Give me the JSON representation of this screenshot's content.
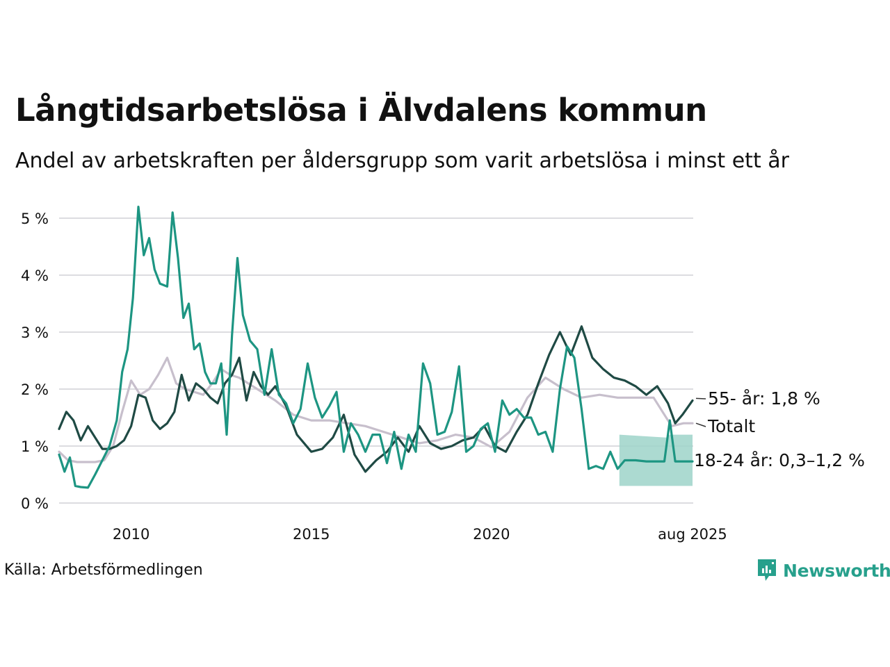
{
  "title": "Långtidsarbetslösa i Älvdalens kommun",
  "subtitle": "Andel av arbetskraften per åldersgrupp som varit arbetslösa i minst ett år",
  "source": "Källa: Arbetsförmedlingen",
  "brand": {
    "name": "Newsworthy",
    "icon": "newsworthy-logo-icon",
    "color": "#27a08c"
  },
  "chart_data": {
    "type": "line",
    "x_range": [
      2008.0,
      2025.6
    ],
    "ylim": [
      0,
      5
    ],
    "yticks": [
      0,
      1,
      2,
      3,
      4,
      5
    ],
    "ytick_labels": [
      "0 %",
      "1 %",
      "2 %",
      "3 %",
      "4 %",
      "5 %"
    ],
    "xticks": [
      2010,
      2015,
      2020,
      2025.58
    ],
    "xtick_labels": [
      "2010",
      "2015",
      "2020",
      "aug 2025"
    ],
    "grid": "horizontal",
    "series": [
      {
        "key": "totalt",
        "label": "Totalt",
        "color": "#c7bfcc",
        "x": [
          2008.0,
          2008.25,
          2008.5,
          2008.75,
          2009.0,
          2009.25,
          2009.5,
          2009.75,
          2010.0,
          2010.25,
          2010.5,
          2010.75,
          2011.0,
          2011.25,
          2011.5,
          2011.75,
          2012.0,
          2012.25,
          2012.5,
          2012.75,
          2013.0,
          2013.5,
          2014.0,
          2014.5,
          2015.0,
          2015.5,
          2016.0,
          2016.5,
          2017.0,
          2017.5,
          2018.0,
          2018.5,
          2019.0,
          2019.5,
          2020.0,
          2020.5,
          2021.0,
          2021.5,
          2022.0,
          2022.5,
          2023.0,
          2023.5,
          2024.0,
          2024.5,
          2025.0,
          2025.33,
          2025.58
        ],
        "y": [
          0.9,
          0.75,
          0.72,
          0.72,
          0.72,
          0.75,
          1.0,
          1.6,
          2.15,
          1.9,
          2.0,
          2.25,
          2.55,
          2.1,
          2.0,
          1.95,
          1.9,
          2.1,
          2.35,
          2.25,
          2.2,
          2.0,
          1.8,
          1.55,
          1.45,
          1.45,
          1.4,
          1.35,
          1.25,
          1.15,
          1.05,
          1.1,
          1.2,
          1.15,
          0.98,
          1.25,
          1.85,
          2.2,
          2.0,
          1.85,
          1.9,
          1.85,
          1.85,
          1.85,
          1.35,
          1.4,
          1.4
        ]
      },
      {
        "key": "55plus",
        "label": "55- år: 1,8 %",
        "color": "#1f4a44",
        "x": [
          2008.0,
          2008.2,
          2008.4,
          2008.6,
          2008.8,
          2009.0,
          2009.2,
          2009.4,
          2009.6,
          2009.8,
          2010.0,
          2010.2,
          2010.4,
          2010.6,
          2010.8,
          2011.0,
          2011.2,
          2011.4,
          2011.6,
          2011.8,
          2012.0,
          2012.2,
          2012.4,
          2012.6,
          2012.8,
          2013.0,
          2013.2,
          2013.4,
          2013.6,
          2013.8,
          2014.0,
          2014.3,
          2014.6,
          2015.0,
          2015.3,
          2015.6,
          2015.9,
          2016.2,
          2016.5,
          2016.8,
          2017.1,
          2017.4,
          2017.7,
          2018.0,
          2018.3,
          2018.6,
          2018.9,
          2019.2,
          2019.5,
          2019.8,
          2020.1,
          2020.4,
          2020.7,
          2021.0,
          2021.3,
          2021.6,
          2021.9,
          2022.2,
          2022.5,
          2022.8,
          2023.1,
          2023.4,
          2023.7,
          2024.0,
          2024.3,
          2024.6,
          2024.9,
          2025.1,
          2025.3,
          2025.58
        ],
        "y": [
          1.3,
          1.6,
          1.45,
          1.1,
          1.35,
          1.15,
          0.95,
          0.95,
          1.0,
          1.1,
          1.35,
          1.9,
          1.85,
          1.45,
          1.3,
          1.4,
          1.6,
          2.25,
          1.8,
          2.1,
          2.0,
          1.85,
          1.75,
          2.1,
          2.25,
          2.55,
          1.8,
          2.3,
          2.05,
          1.9,
          2.05,
          1.7,
          1.2,
          0.9,
          0.95,
          1.15,
          1.55,
          0.85,
          0.55,
          0.75,
          0.9,
          1.15,
          0.9,
          1.35,
          1.05,
          0.95,
          1.0,
          1.1,
          1.15,
          1.35,
          1.0,
          0.9,
          1.25,
          1.55,
          2.1,
          2.6,
          3.0,
          2.6,
          3.1,
          2.55,
          2.35,
          2.2,
          2.15,
          2.05,
          1.9,
          2.05,
          1.75,
          1.4,
          1.55,
          1.8
        ]
      },
      {
        "key": "18_24",
        "label": "18-24 år: 0,3–1,2 %",
        "color": "#1d9582",
        "band_color": "#9ed3c9",
        "x": [
          2008.0,
          2008.15,
          2008.3,
          2008.45,
          2008.6,
          2008.8,
          2009.0,
          2009.2,
          2009.4,
          2009.6,
          2009.75,
          2009.9,
          2010.05,
          2010.2,
          2010.35,
          2010.5,
          2010.65,
          2010.8,
          2011.0,
          2011.15,
          2011.3,
          2011.45,
          2011.6,
          2011.75,
          2011.9,
          2012.05,
          2012.2,
          2012.35,
          2012.5,
          2012.65,
          2012.8,
          2012.95,
          2013.1,
          2013.3,
          2013.5,
          2013.7,
          2013.9,
          2014.1,
          2014.3,
          2014.5,
          2014.7,
          2014.9,
          2015.1,
          2015.3,
          2015.5,
          2015.7,
          2015.9,
          2016.1,
          2016.3,
          2016.5,
          2016.7,
          2016.9,
          2017.1,
          2017.3,
          2017.5,
          2017.7,
          2017.9,
          2018.1,
          2018.3,
          2018.5,
          2018.7,
          2018.9,
          2019.1,
          2019.3,
          2019.5,
          2019.7,
          2019.9,
          2020.1,
          2020.3,
          2020.5,
          2020.7,
          2020.9,
          2021.1,
          2021.3,
          2021.5,
          2021.7,
          2021.9,
          2022.1,
          2022.3,
          2022.5,
          2022.7,
          2022.9,
          2023.1,
          2023.3,
          2023.5,
          2023.7,
          2024.0,
          2024.3,
          2024.6,
          2024.8,
          2024.95,
          2025.1,
          2025.3,
          2025.58
        ],
        "y": [
          0.85,
          0.55,
          0.8,
          0.3,
          0.28,
          0.27,
          0.5,
          0.75,
          1.0,
          1.45,
          2.3,
          2.7,
          3.6,
          5.2,
          4.35,
          4.65,
          4.1,
          3.85,
          3.8,
          5.1,
          4.3,
          3.25,
          3.5,
          2.7,
          2.8,
          2.3,
          2.1,
          2.1,
          2.45,
          1.2,
          2.95,
          4.3,
          3.3,
          2.85,
          2.7,
          1.9,
          2.7,
          1.9,
          1.75,
          1.4,
          1.65,
          2.45,
          1.85,
          1.5,
          1.7,
          1.95,
          0.9,
          1.4,
          1.2,
          0.9,
          1.2,
          1.2,
          0.7,
          1.25,
          0.6,
          1.2,
          0.9,
          2.45,
          2.1,
          1.2,
          1.25,
          1.6,
          2.4,
          0.9,
          1.0,
          1.3,
          1.4,
          0.9,
          1.8,
          1.55,
          1.65,
          1.5,
          1.5,
          1.2,
          1.25,
          0.9,
          2.0,
          2.75,
          2.55,
          1.65,
          0.6,
          0.65,
          0.6,
          0.9,
          0.6,
          0.75,
          0.75,
          0.73,
          0.73,
          0.73,
          1.45,
          0.73,
          0.73,
          0.73
        ],
        "band_x": [
          2023.55,
          2024.85,
          2024.95,
          2025.58
        ],
        "band_low": [
          0.3,
          0.3,
          0.3,
          0.3
        ],
        "band_high": [
          1.2,
          1.15,
          1.2,
          1.2
        ]
      }
    ]
  }
}
